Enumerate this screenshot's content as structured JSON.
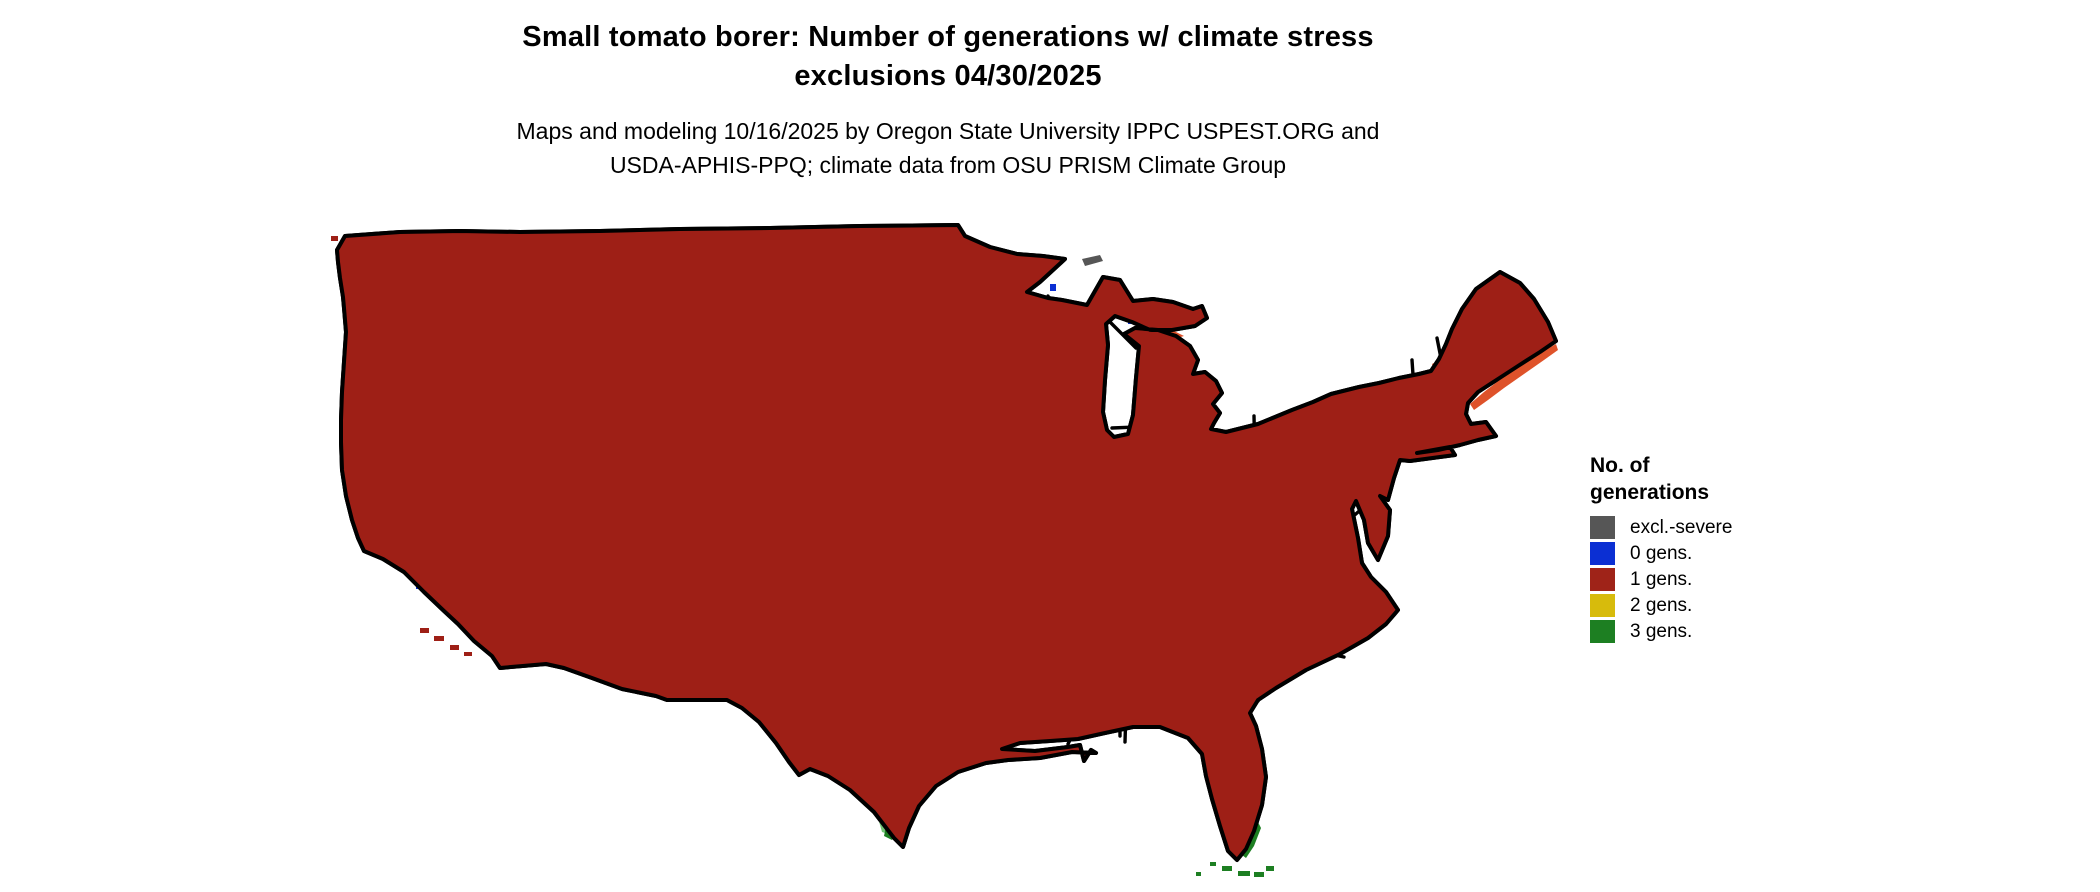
{
  "header": {
    "title_line1": "Small tomato borer: Number of generations w/ climate stress",
    "title_line2": "exclusions 04/30/2025",
    "subtitle_line1": "Maps and modeling 10/16/2025 by Oregon State University IPPC USPEST.ORG and",
    "subtitle_line2": "USDA-APHIS-PPQ; climate data from OSU PRISM Climate Group"
  },
  "legend": {
    "title_line1": "No. of",
    "title_line2": "generations",
    "items": [
      {
        "label": "excl.-severe",
        "color": "#565656"
      },
      {
        "label": "0 gens.",
        "color": "#0B2FD3"
      },
      {
        "label": "1 gens.",
        "color": "#9F2318"
      },
      {
        "label": "2 gens.",
        "color": "#D7BB0C"
      },
      {
        "label": "3 gens.",
        "color": "#1D7F22"
      }
    ]
  },
  "map_palette": {
    "base-1gen": "#9E1F16",
    "severe-gray": "#565656",
    "zero-blue": "#0B2FD3",
    "two-yellow": "#D7BB0C",
    "two-yellow-bright": "#F3EE2F",
    "three-green": "#1D7F22",
    "three-green-light": "#74C476",
    "highlight-orange": "#DC4418",
    "shadow-maroon": "#6F1109",
    "border-black": "#000000",
    "water-white": "#FFFFFF"
  }
}
